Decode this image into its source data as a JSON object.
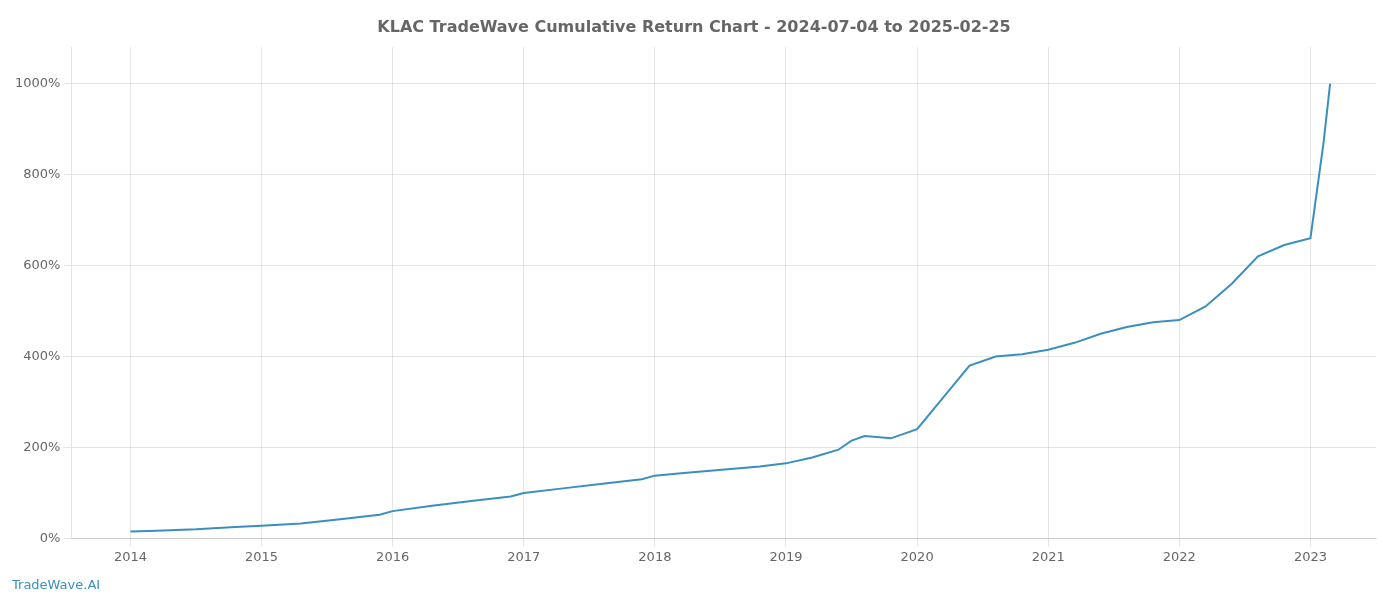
{
  "chart_data": {
    "type": "line",
    "title": "KLAC TradeWave Cumulative Return Chart - 2024-07-04 to 2025-02-25",
    "annotations": [
      "TradeWave.AI"
    ],
    "x": [
      2014.0,
      2014.2,
      2014.5,
      2014.8,
      2015.0,
      2015.3,
      2015.6,
      2015.9,
      2016.0,
      2016.3,
      2016.6,
      2016.9,
      2017.0,
      2017.3,
      2017.6,
      2017.9,
      2018.0,
      2018.2,
      2018.4,
      2018.6,
      2018.8,
      2019.0,
      2019.2,
      2019.4,
      2019.5,
      2019.6,
      2019.8,
      2020.0,
      2020.2,
      2020.4,
      2020.6,
      2020.8,
      2021.0,
      2021.2,
      2021.4,
      2021.6,
      2021.8,
      2022.0,
      2022.2,
      2022.4,
      2022.6,
      2022.8,
      2023.0,
      2023.1,
      2023.15
    ],
    "values": [
      15,
      17,
      20,
      25,
      28,
      33,
      42,
      52,
      60,
      72,
      82,
      92,
      100,
      110,
      120,
      130,
      138,
      143,
      148,
      153,
      158,
      165,
      178,
      195,
      215,
      225,
      220,
      240,
      310,
      380,
      400,
      405,
      415,
      430,
      450,
      465,
      475,
      480,
      510,
      560,
      620,
      645,
      660,
      870,
      1000
    ],
    "color": "#3a8fbe",
    "xlim": [
      2013.55,
      2023.5
    ],
    "xticks": [
      2014,
      2015,
      2016,
      2017,
      2018,
      2019,
      2020,
      2021,
      2022,
      2023
    ],
    "ylim": [
      0,
      1080
    ],
    "yticks": [
      {
        "value": 0,
        "label": "0%"
      },
      {
        "value": 200,
        "label": "200%"
      },
      {
        "value": 400,
        "label": "400%"
      },
      {
        "value": 600,
        "label": "600%"
      },
      {
        "value": 800,
        "label": "800%"
      },
      {
        "value": 1000,
        "label": "1000%"
      }
    ],
    "grid": true
  }
}
